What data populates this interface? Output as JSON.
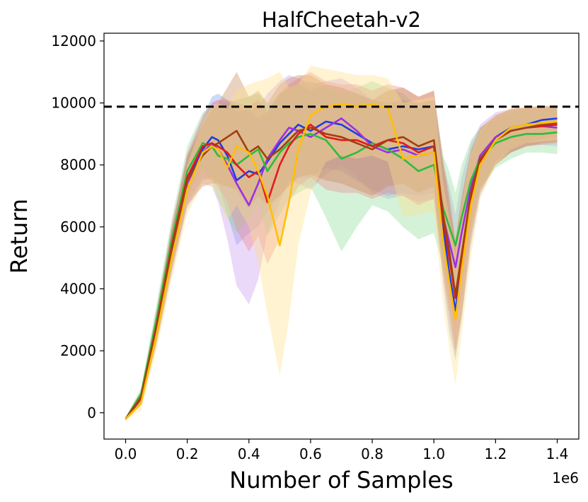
{
  "chart_data": {
    "type": "line",
    "title": "HalfCheetah-v2",
    "xlabel": "Number of Samples",
    "ylabel": "Return",
    "x_offset_label": "1e6",
    "xlim": [
      -0.07,
      1.47
    ],
    "ylim": [
      -850,
      12250
    ],
    "xticks": [
      0.0,
      0.2,
      0.4,
      0.6,
      0.8,
      1.0,
      1.2,
      1.4
    ],
    "xtick_labels": [
      "0.0",
      "0.2",
      "0.4",
      "0.6",
      "0.8",
      "1.0",
      "1.2",
      "1.4"
    ],
    "yticks": [
      0,
      2000,
      4000,
      6000,
      8000,
      10000,
      12000
    ],
    "ytick_labels": [
      "0",
      "2000",
      "4000",
      "6000",
      "8000",
      "10000",
      "12000"
    ],
    "grid": false,
    "legend": "none",
    "reference_line": {
      "y": 9880,
      "style": "dashed",
      "color": "#000000"
    },
    "x": [
      0.0,
      0.05,
      0.1,
      0.15,
      0.2,
      0.25,
      0.28,
      0.3,
      0.33,
      0.36,
      0.4,
      0.43,
      0.46,
      0.5,
      0.53,
      0.56,
      0.6,
      0.65,
      0.7,
      0.75,
      0.8,
      0.85,
      0.9,
      0.95,
      1.0,
      1.03,
      1.05,
      1.07,
      1.09,
      1.12,
      1.15,
      1.2,
      1.25,
      1.3,
      1.35,
      1.4
    ],
    "series": [
      {
        "color": "#1f3fe0",
        "band_color": "#7f9cf0",
        "values": [
          -200,
          500,
          2800,
          5300,
          7500,
          8500,
          8900,
          8800,
          8300,
          7500,
          7800,
          7700,
          8100,
          8700,
          9000,
          9300,
          9100,
          9400,
          9300,
          9000,
          8700,
          8500,
          8600,
          8500,
          8600,
          6000,
          4500,
          3300,
          4800,
          6800,
          8000,
          8900,
          9200,
          9300,
          9450,
          9500
        ],
        "lower": [
          -250,
          300,
          2300,
          4600,
          6700,
          7500,
          7600,
          7400,
          6400,
          5400,
          5800,
          6000,
          6500,
          7000,
          7400,
          7600,
          7600,
          7900,
          7800,
          7500,
          7200,
          7000,
          7100,
          7000,
          7100,
          4200,
          2600,
          1700,
          3000,
          5400,
          7000,
          8100,
          8500,
          8700,
          8850,
          8900
        ],
        "upper": [
          -150,
          700,
          3300,
          6000,
          8300,
          9500,
          10200,
          10300,
          10100,
          9700,
          9800,
          9500,
          9700,
          10300,
          10500,
          10600,
          10400,
          10600,
          10500,
          10300,
          10100,
          10000,
          10100,
          10000,
          10100,
          7800,
          6400,
          4900,
          6600,
          8200,
          9000,
          9600,
          9800,
          9850,
          9900,
          9900
        ]
      },
      {
        "color": "#9b30e6",
        "band_color": "#c79af0",
        "values": [
          -200,
          450,
          2700,
          5200,
          7400,
          8400,
          8700,
          8500,
          8000,
          7400,
          6700,
          7400,
          8200,
          8800,
          9200,
          9100,
          8900,
          9200,
          9500,
          9100,
          8600,
          8400,
          8500,
          8300,
          8400,
          6300,
          5500,
          4700,
          5800,
          7300,
          8300,
          8900,
          9100,
          9200,
          9250,
          9200
        ],
        "lower": [
          -250,
          250,
          2200,
          4500,
          6600,
          7400,
          7300,
          6800,
          5600,
          4100,
          3500,
          4300,
          5800,
          6800,
          7500,
          7400,
          7200,
          7700,
          8000,
          7600,
          7100,
          6900,
          7000,
          6800,
          6900,
          4800,
          3700,
          2700,
          3900,
          5900,
          7300,
          8100,
          8400,
          8600,
          8650,
          8600
        ],
        "upper": [
          -150,
          650,
          3200,
          5900,
          8200,
          9400,
          10000,
          10100,
          10000,
          9900,
          9700,
          9900,
          10300,
          10700,
          10900,
          10800,
          10600,
          10700,
          10800,
          10500,
          10100,
          9900,
          10000,
          9800,
          9900,
          8000,
          7300,
          6400,
          7600,
          8700,
          9300,
          9700,
          9800,
          9850,
          9850,
          9800
        ]
      },
      {
        "color": "#2bbd3a",
        "band_color": "#8fdc98",
        "values": [
          -200,
          600,
          3000,
          5600,
          7800,
          8700,
          8600,
          8300,
          8200,
          8000,
          8300,
          8500,
          7800,
          8400,
          8700,
          8900,
          9000,
          8800,
          8200,
          8400,
          8700,
          8500,
          8200,
          7800,
          8000,
          6600,
          6000,
          5400,
          6300,
          7500,
          8200,
          8700,
          8900,
          9000,
          9000,
          9050
        ],
        "lower": [
          -250,
          400,
          2500,
          4900,
          7000,
          7900,
          7500,
          6900,
          6300,
          5800,
          6300,
          6700,
          5700,
          6400,
          6900,
          7100,
          7300,
          6300,
          5200,
          6000,
          6700,
          6500,
          6000,
          5600,
          5800,
          4700,
          4100,
          3600,
          4400,
          6100,
          7200,
          7900,
          8200,
          8400,
          8400,
          8350
        ],
        "upper": [
          -150,
          800,
          3500,
          6300,
          8600,
          9700,
          9900,
          9900,
          10000,
          10100,
          10200,
          10300,
          9900,
          10300,
          10500,
          10600,
          10700,
          10500,
          10300,
          10500,
          10700,
          10500,
          10300,
          9900,
          10100,
          8300,
          7800,
          7100,
          8000,
          8800,
          9200,
          9500,
          9700,
          9800,
          9800,
          9850
        ]
      },
      {
        "color": "#e31a1c",
        "band_color": "#f08a8a",
        "values": [
          -200,
          500,
          2800,
          5400,
          7600,
          8600,
          8700,
          8600,
          8400,
          8000,
          7600,
          7800,
          6800,
          8000,
          8600,
          9000,
          9300,
          8900,
          8800,
          8800,
          8600,
          8800,
          8700,
          8400,
          8600,
          6200,
          5000,
          3700,
          5000,
          7000,
          8100,
          8800,
          9100,
          9200,
          9250,
          9300
        ],
        "lower": [
          -250,
          300,
          2300,
          4700,
          6800,
          7600,
          7500,
          7300,
          6800,
          5900,
          5200,
          5700,
          4800,
          5600,
          6800,
          7300,
          7600,
          7200,
          7100,
          7100,
          6900,
          7100,
          7000,
          6700,
          6900,
          4400,
          3100,
          1900,
          3100,
          5600,
          7100,
          8000,
          8400,
          8600,
          8650,
          8700
        ],
        "upper": [
          -150,
          700,
          3300,
          6100,
          8400,
          9600,
          10000,
          10100,
          10100,
          10000,
          9900,
          10100,
          9700,
          10300,
          10600,
          10800,
          11000,
          10700,
          10600,
          10600,
          10400,
          10600,
          10500,
          10200,
          10400,
          8000,
          6800,
          5500,
          6800,
          8300,
          9100,
          9600,
          9800,
          9850,
          9850,
          9900
        ]
      },
      {
        "color": "#a0400f",
        "band_color": "#c98a5a",
        "values": [
          -200,
          450,
          2700,
          5300,
          7500,
          8300,
          8600,
          8700,
          8900,
          9100,
          8400,
          8600,
          8200,
          8500,
          8800,
          9100,
          9200,
          9000,
          8900,
          8700,
          8500,
          8800,
          8900,
          8600,
          8800,
          6400,
          5200,
          3800,
          5100,
          7100,
          8200,
          8800,
          9100,
          9200,
          9300,
          9350
        ],
        "lower": [
          -250,
          250,
          2200,
          4600,
          6700,
          7300,
          7400,
          7400,
          7300,
          7200,
          6600,
          7000,
          6700,
          7000,
          7300,
          7600,
          7700,
          7500,
          7400,
          7200,
          7000,
          7300,
          7400,
          7100,
          7300,
          4600,
          3300,
          2000,
          3200,
          5700,
          7200,
          8000,
          8400,
          8600,
          8700,
          8750
        ],
        "upper": [
          -150,
          650,
          3200,
          6000,
          8300,
          9300,
          9800,
          10000,
          10500,
          11000,
          10200,
          10400,
          10000,
          10600,
          10800,
          10900,
          10900,
          10600,
          10500,
          10300,
          10100,
          10400,
          10500,
          10200,
          10400,
          8200,
          7000,
          5600,
          7000,
          8500,
          9200,
          9600,
          9800,
          9850,
          9900,
          9900
        ]
      },
      {
        "color": "#ffc000",
        "band_color": "#ffe08a",
        "values": [
          -200,
          300,
          2500,
          5000,
          7200,
          8400,
          8600,
          8500,
          7900,
          8600,
          8400,
          7800,
          7000,
          5400,
          6800,
          8500,
          9600,
          9900,
          9950,
          9900,
          9950,
          9850,
          8200,
          8300,
          8400,
          5500,
          4200,
          3000,
          4600,
          6700,
          8000,
          8800,
          9200,
          9300,
          9350,
          9400
        ],
        "lower": [
          -250,
          100,
          2000,
          4300,
          6400,
          7400,
          7300,
          7000,
          6200,
          6700,
          6000,
          4800,
          3200,
          1200,
          3000,
          5400,
          7100,
          8100,
          8300,
          8200,
          8300,
          8100,
          6300,
          6400,
          6500,
          3500,
          2100,
          900,
          2500,
          5000,
          6900,
          8000,
          8500,
          8700,
          8750,
          8800
        ],
        "upper": [
          -150,
          500,
          3000,
          5700,
          8000,
          9400,
          9900,
          10000,
          9800,
          10400,
          10600,
          10700,
          10800,
          11000,
          10500,
          10600,
          11200,
          11100,
          11000,
          10900,
          10900,
          10800,
          10000,
          10100,
          10200,
          7500,
          6300,
          5100,
          6700,
          8300,
          9100,
          9600,
          9850,
          9900,
          9900,
          9950
        ]
      }
    ]
  }
}
